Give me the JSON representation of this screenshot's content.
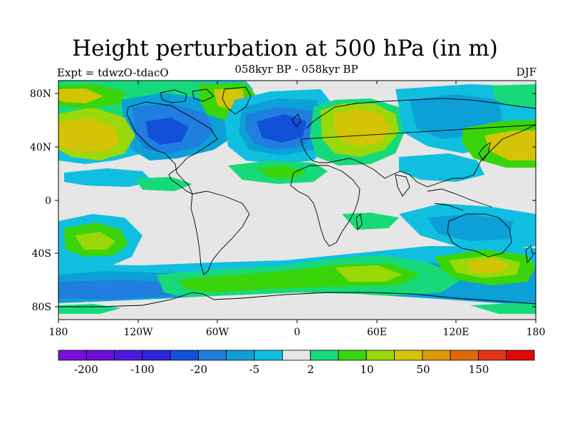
{
  "title": "Height perturbation at 500 hPa (in m)",
  "subtitle": "058kyr BP - 058kyr BP",
  "left_label": "Expt = tdwzO-tdacO",
  "right_label": "DJF",
  "lat_ticks": [
    "80N",
    "40N",
    "0",
    "40S",
    "80S"
  ],
  "lon_ticks": [
    "180",
    "120W",
    "60W",
    "0",
    "60E",
    "120E",
    "180"
  ],
  "colorbar": {
    "colors": [
      "#7a10d8",
      "#6b0ed8",
      "#4f19d8",
      "#2a28d8",
      "#1250d8",
      "#1f7ede",
      "#0ca0d6",
      "#10bfe0",
      "#e6e6e6",
      "#18d97a",
      "#3ad40a",
      "#9ad80a",
      "#d4c407",
      "#dc9a05",
      "#df6a04",
      "#e03418",
      "#e00808"
    ],
    "labels": [
      "-200",
      "-100",
      "-20",
      "-5",
      "2",
      "10",
      "50",
      "150"
    ]
  },
  "map_colors": {
    "ocean_bg": "#e6e6e6",
    "light_blue": "#10bfe0",
    "mid_blue": "#0ca0d6",
    "blue": "#1f7ede",
    "dark_blue": "#1250d8",
    "green_light": "#18d97a",
    "green": "#3ad40a",
    "yellow_green": "#9ad80a",
    "yellow": "#d4c407",
    "coast": "#000000"
  }
}
